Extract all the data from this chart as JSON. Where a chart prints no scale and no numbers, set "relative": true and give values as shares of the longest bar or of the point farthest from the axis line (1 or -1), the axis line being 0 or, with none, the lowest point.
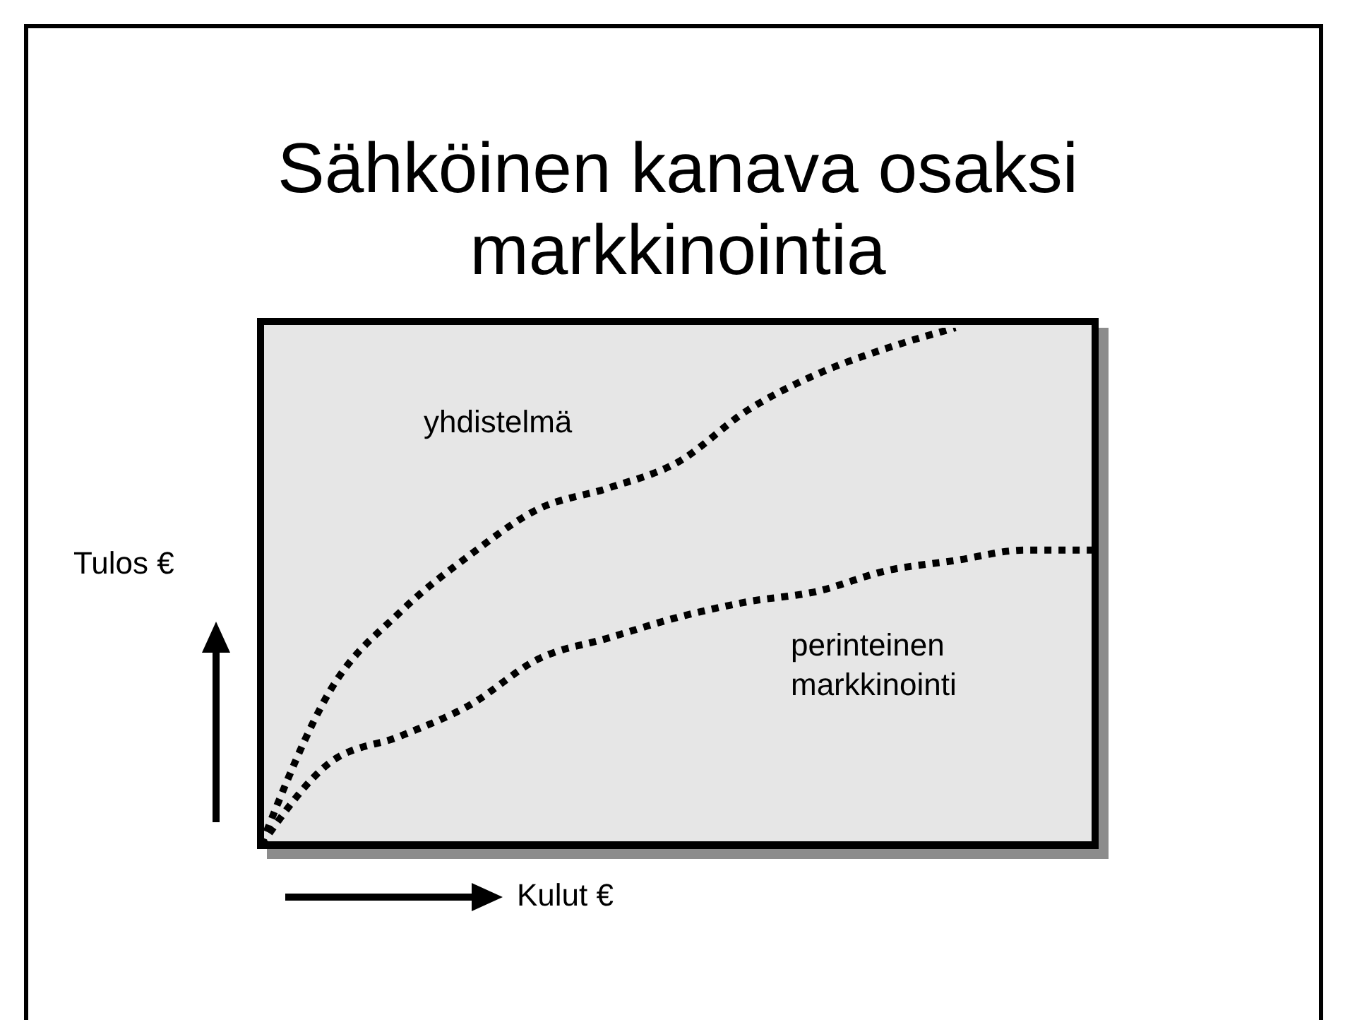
{
  "chart_data": {
    "type": "line",
    "title": "Sähköinen kanava osaksi markkinointia",
    "xlabel": "Kulut €",
    "ylabel": "Tulos €",
    "relative": true,
    "line_style": "dotted",
    "marker": "none",
    "categories": [
      null,
      null,
      null,
      null,
      null,
      null,
      null,
      null,
      null,
      null,
      null,
      null,
      null
    ],
    "series": [
      {
        "name": "yhdistelmä",
        "color": "#000000",
        "values": [
          0,
          0.3,
          0.45,
          0.56,
          0.65,
          0.69,
          0.74,
          0.84,
          0.91,
          0.96,
          1,
          null,
          null
        ]
      },
      {
        "name": "perinteinen markkinointi",
        "color": "#000000",
        "values": [
          0,
          0.16,
          0.21,
          0.27,
          0.36,
          0.4,
          0.44,
          0.47,
          0.49,
          0.53,
          0.55,
          0.57,
          0.57
        ]
      }
    ]
  }
}
